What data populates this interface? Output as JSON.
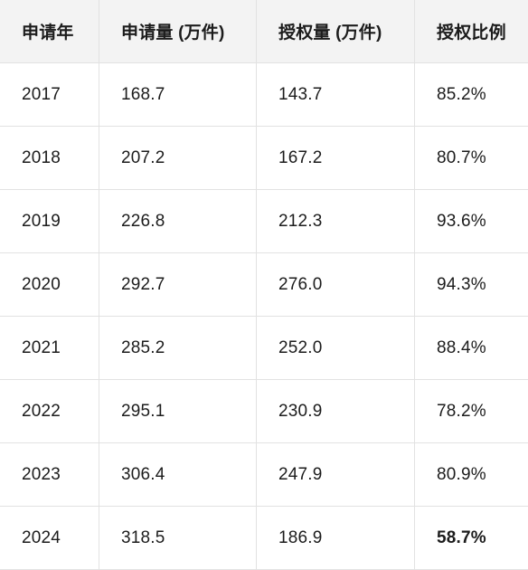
{
  "table": {
    "headers": [
      "申请年",
      "申请量 (万件)",
      "授权量 (万件)",
      "授权比例"
    ],
    "rows": [
      [
        "2017",
        "168.7",
        "143.7",
        "85.2%"
      ],
      [
        "2018",
        "207.2",
        "167.2",
        "80.7%"
      ],
      [
        "2019",
        "226.8",
        "212.3",
        "93.6%"
      ],
      [
        "2020",
        "292.7",
        "276.0",
        "94.3%"
      ],
      [
        "2021",
        "285.2",
        "252.0",
        "88.4%"
      ],
      [
        "2022",
        "295.1",
        "230.9",
        "78.2%"
      ],
      [
        "2023",
        "306.4",
        "247.9",
        "80.9%"
      ],
      [
        "2024",
        "318.5",
        "186.9",
        "58.7%"
      ]
    ],
    "emphasized_cell": "58.7%"
  }
}
